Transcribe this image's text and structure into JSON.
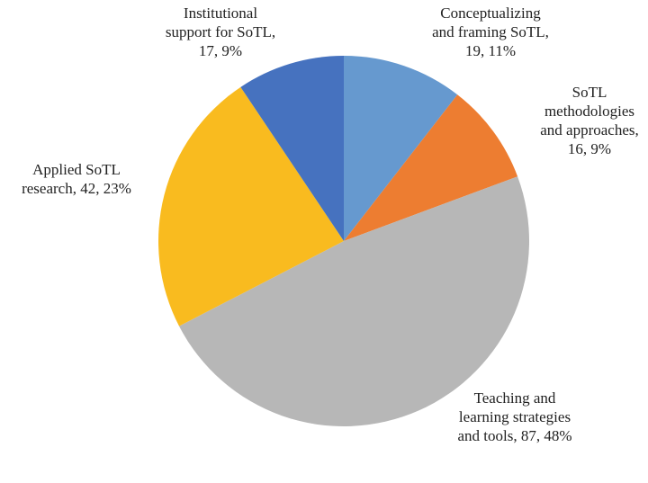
{
  "chart_data": {
    "type": "pie",
    "categories": [
      "Conceptualizing and framing SoTL",
      "SoTL methodologies and approaches",
      "Teaching and learning strategies and tools",
      "Applied SoTL research",
      "Institutional support for SoTL"
    ],
    "values": [
      19,
      16,
      87,
      42,
      17
    ],
    "percentages": [
      11,
      9,
      48,
      23,
      9
    ],
    "percentage_labels": [
      "11%",
      "9%",
      "48%",
      "23%",
      "9%"
    ],
    "colors": [
      "#6699cf",
      "#ed7d31",
      "#b7b7b7",
      "#f9bb1f",
      "#4672bf"
    ],
    "start_angle": 0,
    "direction": "clockwise"
  }
}
